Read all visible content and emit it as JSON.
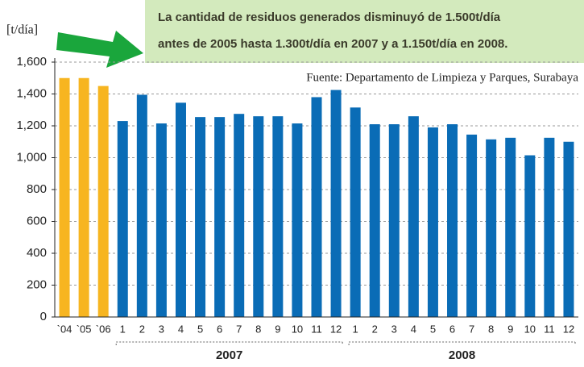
{
  "chart_data": {
    "type": "bar",
    "annotation": [
      "La cantidad de residuos generados disminuyó de 1.500t/día",
      "antes de 2005 hasta 1.300t/día en 2007 y a 1.150t/día en 2008."
    ],
    "source": "Fuente: Departamento de Limpieza y Parques, Surabaya",
    "y_label": "[t/día]",
    "categories": [
      "`04",
      "`05",
      "`06",
      "1",
      "2",
      "3",
      "4",
      "5",
      "6",
      "7",
      "8",
      "9",
      "10",
      "11",
      "12",
      "1",
      "2",
      "3",
      "4",
      "5",
      "6",
      "7",
      "8",
      "9",
      "10",
      "11",
      "12"
    ],
    "groups": [
      "2007",
      "2008"
    ],
    "values": [
      1500,
      1500,
      1450,
      1230,
      1395,
      1215,
      1345,
      1255,
      1255,
      1275,
      1260,
      1260,
      1215,
      1380,
      1425,
      1315,
      1210,
      1210,
      1260,
      1190,
      1210,
      1145,
      1115,
      1125,
      1015,
      1125,
      1100
    ],
    "colors": [
      "#f7b520",
      "#f7b520",
      "#f7b520",
      "#0a6cb6",
      "#0a6cb6",
      "#0a6cb6",
      "#0a6cb6",
      "#0a6cb6",
      "#0a6cb6",
      "#0a6cb6",
      "#0a6cb6",
      "#0a6cb6",
      "#0a6cb6",
      "#0a6cb6",
      "#0a6cb6",
      "#0a6cb6",
      "#0a6cb6",
      "#0a6cb6",
      "#0a6cb6",
      "#0a6cb6",
      "#0a6cb6",
      "#0a6cb6",
      "#0a6cb6",
      "#0a6cb6",
      "#0a6cb6",
      "#0a6cb6",
      "#0a6cb6"
    ],
    "ylim": [
      0,
      1600
    ],
    "yticks": [
      0,
      200,
      400,
      600,
      800,
      {
        "value": 1000,
        "label": "1,000"
      },
      {
        "value": 1200,
        "label": "1,200"
      },
      {
        "value": 1400,
        "label": "1,400"
      },
      {
        "value": 1600,
        "label": "1,600"
      }
    ],
    "grid": true
  }
}
